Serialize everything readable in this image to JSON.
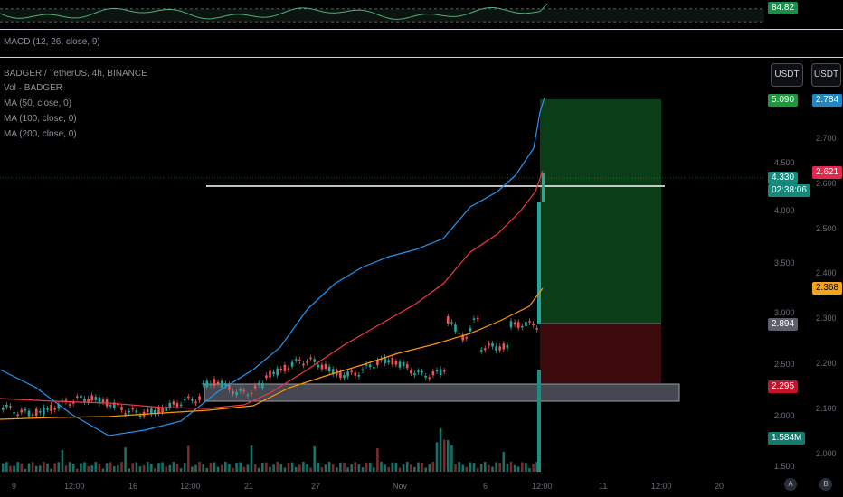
{
  "rsi": {
    "value": "84.82"
  },
  "macd": {
    "legend": "MACD (12, 26, close, 9)"
  },
  "symbol": {
    "title": "BADGER / TetherUS, 4h, BINANCE",
    "indicators": [
      "Vol · BADGER",
      "MA (50, close, 0)",
      "MA (100, close, 0)",
      "MA (200, close, 0)"
    ]
  },
  "currency_buttons": [
    "USDT",
    "USDT"
  ],
  "price_axis_left": [
    "4.500",
    "4.000",
    "3.500",
    "3.000",
    "2.500",
    "2.000",
    "1.500"
  ],
  "price_axis_right": [
    "2.700",
    "2.600",
    "2.500",
    "2.400",
    "2.300",
    "2.200",
    "2.100",
    "2.000"
  ],
  "tags": {
    "target": "5.090",
    "target_alt": "2.784",
    "last_price": "4.330",
    "countdown": "02:38:06",
    "right_red": "2.621",
    "ma_orange": "2.368",
    "entry": "2.894",
    "stop": "2.295",
    "volume": "1.584M"
  },
  "time_axis": [
    "9",
    "12:00",
    "16",
    "12:00",
    "21",
    "27",
    "Nov",
    "6",
    "12:00",
    "11",
    "12:00",
    "20"
  ],
  "axis_buttons": [
    "A",
    "B"
  ],
  "colors": {
    "up": "#26a69a",
    "down": "#ef5350",
    "ma_blue": "#2196f3",
    "ma_red": "#f23645",
    "ma_orange": "#ff9800",
    "target_zone": "#0b3d17",
    "stop_zone": "#3d0a0e"
  },
  "chart_data": {
    "type": "line",
    "series": [
      {
        "values": [
          2.2,
          2.15,
          2.1,
          2.12,
          2.2,
          2.3,
          2.55,
          2.6,
          2.5,
          2.45,
          2.55,
          2.9,
          2.7,
          2.65,
          2.9,
          3.0,
          4.33
        ]
      }
    ]
  }
}
